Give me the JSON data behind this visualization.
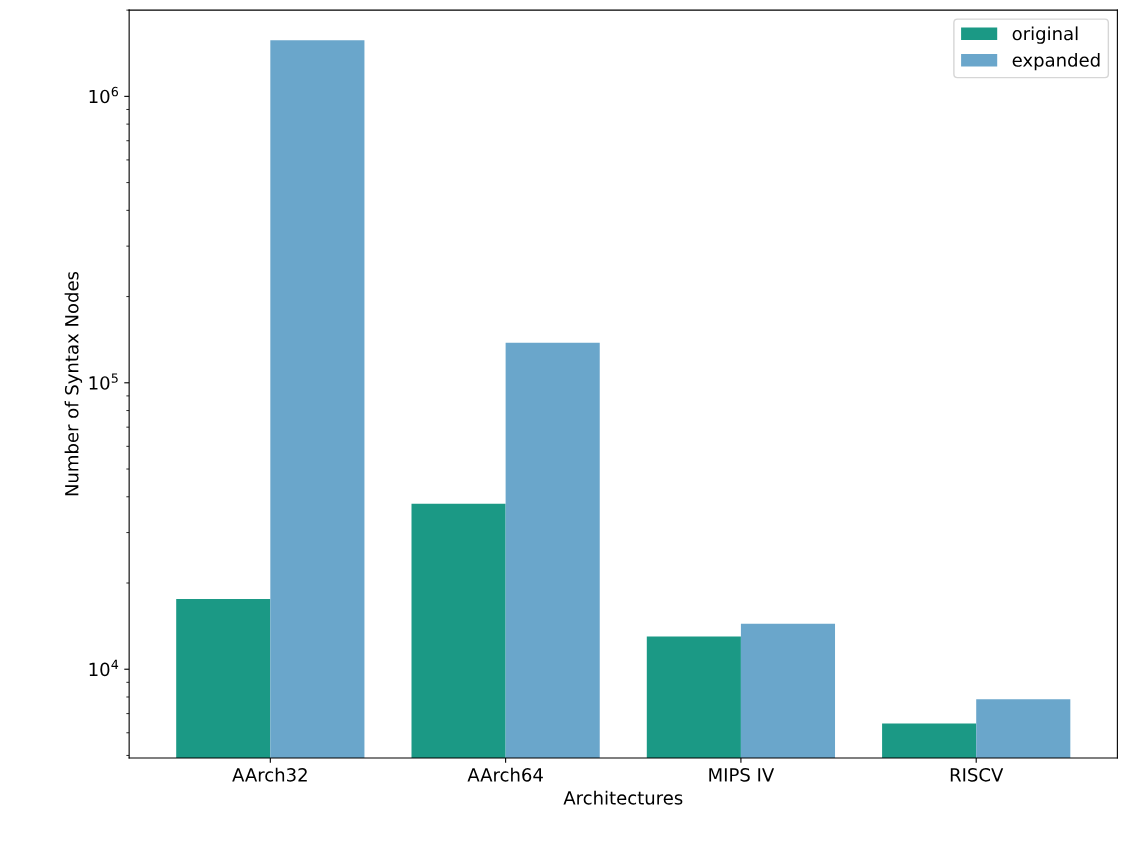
{
  "chart_data": {
    "type": "bar",
    "xlabel": "Architectures",
    "ylabel": "Number of Syntax Nodes",
    "categories": [
      "AArch32",
      "AArch64",
      "MIPS IV",
      "RISCV"
    ],
    "series": [
      {
        "name": "original",
        "color": "#1b9985",
        "values": [
          17600,
          37800,
          13000,
          6470
        ]
      },
      {
        "name": "expanded",
        "color": "#6aa6cb",
        "values": [
          1570000,
          138000,
          14400,
          7850
        ]
      }
    ],
    "log": "y",
    "ylim": [
      4900,
      2000000
    ],
    "yticks": [
      {
        "value": 10000,
        "label": "10$^{4}$"
      },
      {
        "value": 100000,
        "label": "10$^{5}$"
      },
      {
        "value": 1000000,
        "label": "10$^{6}$"
      }
    ],
    "legend": "top right",
    "grid": false
  }
}
